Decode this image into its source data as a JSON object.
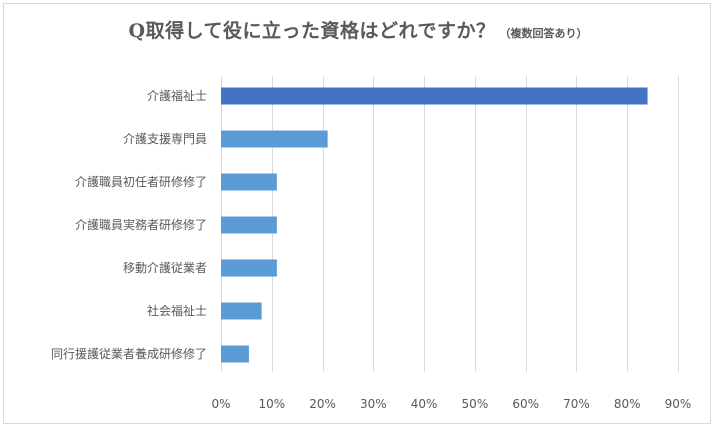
{
  "chart_data": {
    "type": "bar",
    "orientation": "horizontal",
    "title": "Q取得して役に立った資格はどれですか？",
    "subtitle": "（複数回答あり）",
    "categories": [
      "介護福祉士",
      "介護支援専門員",
      "介護職員初任者研修修了",
      "介護職員実務者研修修了",
      "移動介護従業者",
      "社会福祉士",
      "同行援護従業者養成研修修了"
    ],
    "values": [
      84,
      21,
      11,
      11,
      11,
      8,
      5.5
    ],
    "unit": "%",
    "xlim": [
      0,
      90
    ],
    "xticks": [
      0,
      10,
      20,
      30,
      40,
      50,
      60,
      70,
      80,
      90
    ],
    "xtick_labels": [
      "0%",
      "10%",
      "20%",
      "30%",
      "40%",
      "50%",
      "60%",
      "70%",
      "80%",
      "90%"
    ],
    "grid": true,
    "legend": "none",
    "colors": {
      "highlight_bar": "#4472c4",
      "bar": "#5b9bd5",
      "gridline": "#d9d9d9",
      "text": "#595959",
      "border": "#d9d9d9"
    },
    "highlight_index": 0
  }
}
